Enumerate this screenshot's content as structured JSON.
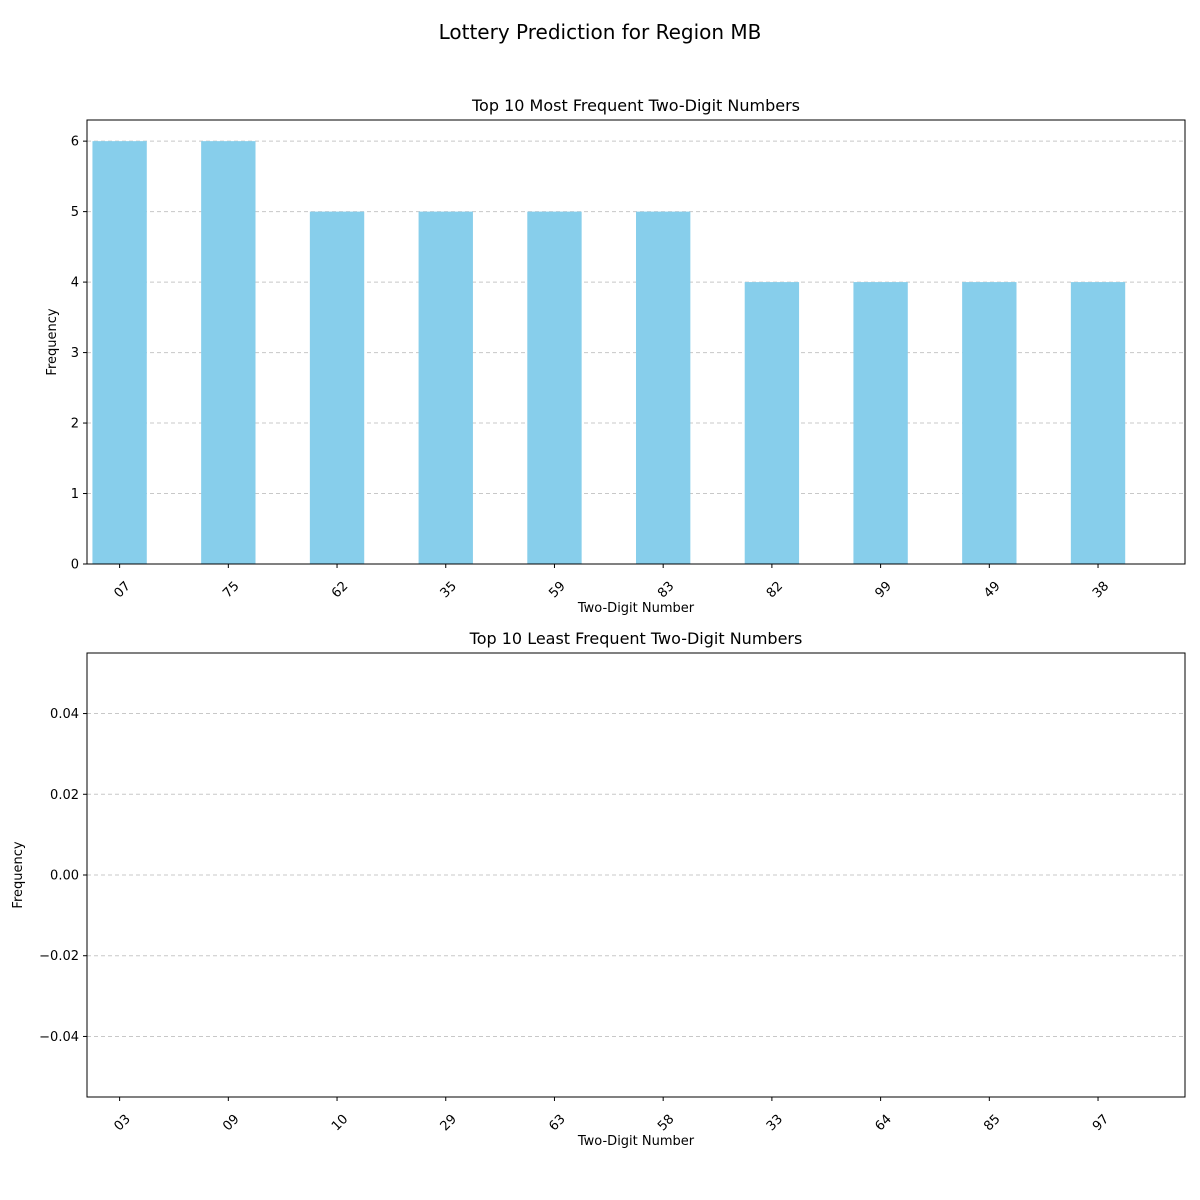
{
  "figure": {
    "title": "Lottery Prediction for Region MB"
  },
  "colors": {
    "bar": "#87ceeb",
    "grid": "#c8c8c8",
    "axis": "#000000"
  },
  "chart_data": [
    {
      "type": "bar",
      "title": "Top 10 Most Frequent Two-Digit Numbers",
      "xlabel": "Two-Digit Number",
      "ylabel": "Frequency",
      "categories": [
        "07",
        "75",
        "62",
        "35",
        "59",
        "83",
        "82",
        "99",
        "49",
        "38"
      ],
      "values": [
        6,
        6,
        5,
        5,
        5,
        5,
        4,
        4,
        4,
        4
      ],
      "ylim": [
        0,
        6.3
      ],
      "yticks": [
        0,
        1,
        2,
        3,
        4,
        5,
        6
      ],
      "ytick_labels": [
        "0",
        "1",
        "2",
        "3",
        "4",
        "5",
        "6"
      ],
      "grid": "y-dashed",
      "xtick_rotation": 45
    },
    {
      "type": "bar",
      "title": "Top 10 Least Frequent Two-Digit Numbers",
      "xlabel": "Two-Digit Number",
      "ylabel": "Frequency",
      "categories": [
        "03",
        "09",
        "10",
        "29",
        "63",
        "58",
        "33",
        "64",
        "85",
        "97"
      ],
      "values": [
        0,
        0,
        0,
        0,
        0,
        0,
        0,
        0,
        0,
        0
      ],
      "ylim": [
        -0.055,
        0.055
      ],
      "yticks": [
        -0.04,
        -0.02,
        0.0,
        0.02,
        0.04
      ],
      "ytick_labels": [
        "−0.04",
        "−0.02",
        "0.00",
        "0.02",
        "0.04"
      ],
      "grid": "y-dashed",
      "xtick_rotation": 45
    }
  ]
}
